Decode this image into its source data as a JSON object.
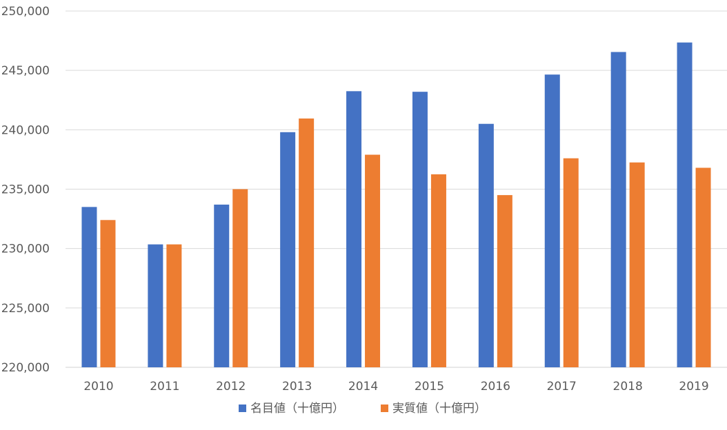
{
  "chart_data": {
    "type": "bar",
    "categories": [
      "2010",
      "2011",
      "2012",
      "2013",
      "2014",
      "2015",
      "2016",
      "2017",
      "2018",
      "2019"
    ],
    "series": [
      {
        "name": "名目値（十億円）",
        "color": "#4472C4",
        "values": [
          233500,
          230350,
          233700,
          239800,
          243250,
          243200,
          240500,
          244650,
          246550,
          247350
        ]
      },
      {
        "name": "実質値（十億円）",
        "color": "#ED7D31",
        "values": [
          232400,
          230350,
          235000,
          240950,
          237900,
          236250,
          234500,
          237600,
          237250,
          236800
        ]
      }
    ],
    "yticks": [
      "220,000",
      "225,000",
      "230,000",
      "235,000",
      "240,000",
      "245,000",
      "250,000"
    ],
    "ylim": [
      220000,
      250000
    ],
    "title": "",
    "xlabel": "",
    "ylabel": "",
    "grid": true,
    "legend_position": "bottom"
  }
}
